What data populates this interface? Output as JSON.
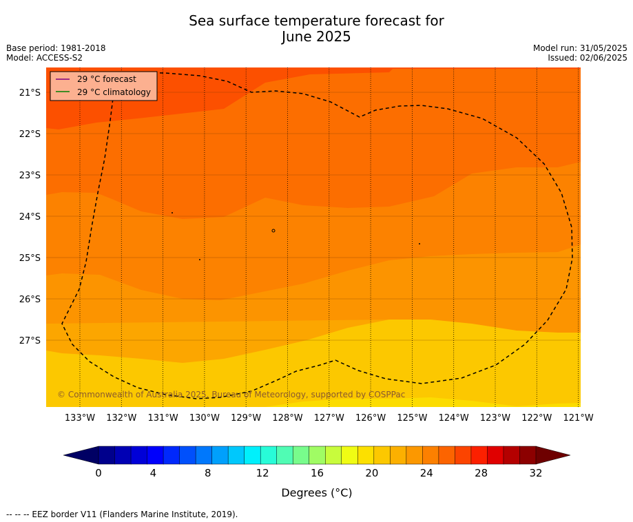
{
  "title_line1": "Sea surface temperature forecast for",
  "title_line2": "June 2025",
  "base_period": "Base period: 1981-2018",
  "model": "Model: ACCESS-S2",
  "model_run": "Model run: 31/05/2025",
  "issued": "Issued: 02/06/2025",
  "legend": [
    {
      "label": "29 °C  forecast",
      "color": "#800080"
    },
    {
      "label": "29 °C  climatology",
      "color": "#008000"
    }
  ],
  "copyright": "© Commonwealth of Australia 2025, Bureau of Meteorology, supported by COSPPac",
  "lat_labels": [
    "21°S",
    "22°S",
    "23°S",
    "24°S",
    "25°S",
    "26°S",
    "27°S"
  ],
  "lon_labels": [
    "133°W",
    "132°W",
    "131°W",
    "130°W",
    "129°W",
    "128°W",
    "127°W",
    "126°W",
    "125°W",
    "124°W",
    "123°W",
    "122°W",
    "121°W"
  ],
  "colorbar": {
    "ticks": [
      "0",
      "4",
      "8",
      "12",
      "16",
      "20",
      "24",
      "28",
      "32"
    ],
    "label": "Degrees (°C)",
    "colors": [
      "#00008c",
      "#0000b4",
      "#0000d8",
      "#0000fc",
      "#0028fc",
      "#0050fc",
      "#0078fc",
      "#00a0fc",
      "#00c8fc",
      "#00f0fc",
      "#28fcd8",
      "#50fcb4",
      "#78fc8c",
      "#a0fc64",
      "#c8fc3c",
      "#f0fc14",
      "#fce000",
      "#fcc800",
      "#fcb000",
      "#fc9800",
      "#fc8000",
      "#fc6400",
      "#fc4400",
      "#fc2000",
      "#e00000",
      "#b40000",
      "#8c0000"
    ],
    "low_color": "#000064",
    "high_color": "#6e0000"
  },
  "footer": "--  --  -- EEZ border V11 (Flanders Marine Institute, 2019)."
}
